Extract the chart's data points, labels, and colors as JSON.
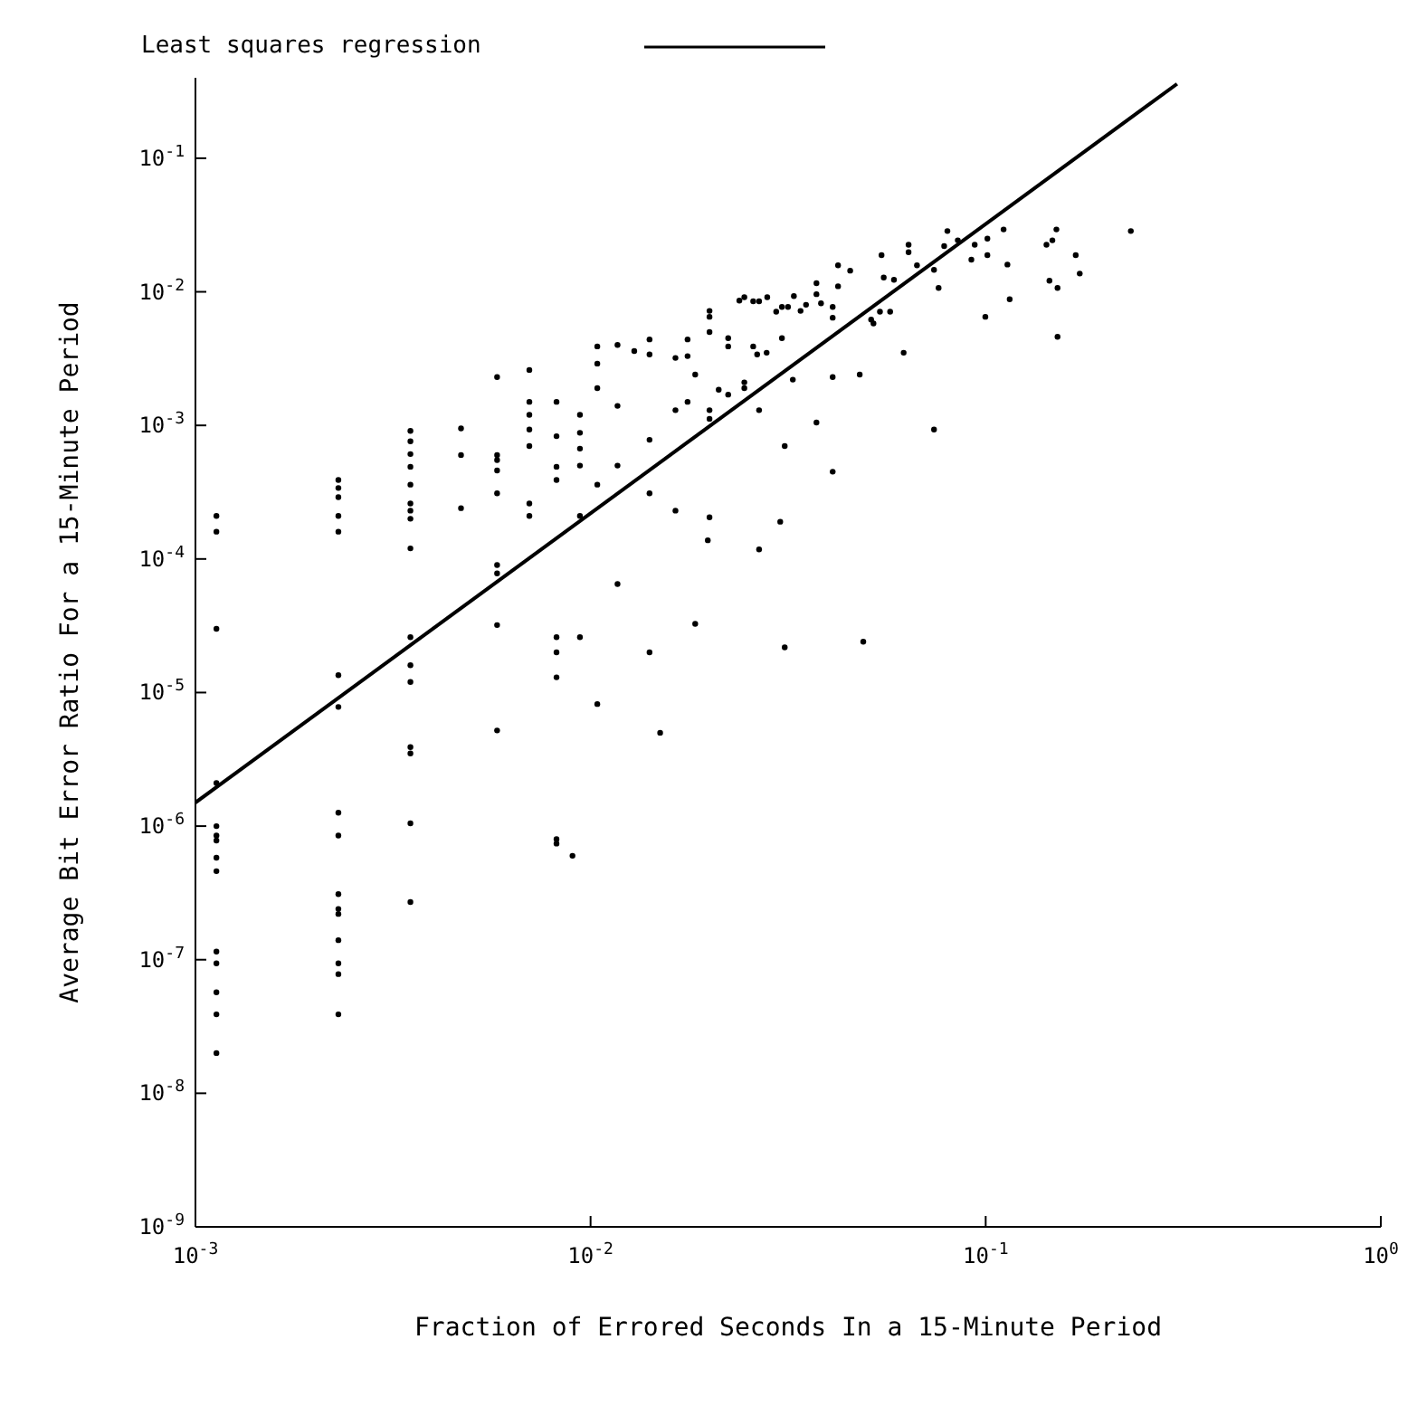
{
  "chart_data": {
    "type": "scatter",
    "xlabel": "Fraction of Errored Seconds In a 15-Minute Period",
    "ylabel": "Average Bit Error Ratio For a 15-Minute Period",
    "log": "xy",
    "grid": false,
    "legend": "top",
    "xlim": [
      0.001,
      1
    ],
    "ylim": [
      1e-09,
      0.4
    ],
    "xticks": [
      {
        "value": 0.001,
        "label": "10$^{-3}$"
      },
      {
        "value": 0.01,
        "label": "10$^{-2}$"
      },
      {
        "value": 0.1,
        "label": "10$^{-1}$"
      },
      {
        "value": 1,
        "label": "10$^{0}$"
      }
    ],
    "yticks": [
      {
        "value": 1e-09,
        "label": "10$^{-9}$"
      },
      {
        "value": 1e-08,
        "label": "10$^{-8}$"
      },
      {
        "value": 1e-07,
        "label": "10$^{-7}$"
      },
      {
        "value": 1e-06,
        "label": "10$^{-6}$"
      },
      {
        "value": 1e-05,
        "label": "10$^{-5}$"
      },
      {
        "value": 0.0001,
        "label": "10$^{-4}$"
      },
      {
        "value": 0.001,
        "label": "10$^{-3}$"
      },
      {
        "value": 0.01,
        "label": "10$^{-2}$"
      },
      {
        "value": 0.1,
        "label": "10$^{-1}$"
      }
    ],
    "series": [
      {
        "type": "scatter",
        "color": "#000000",
        "marker": "circle",
        "x": [
          0.00113,
          0.00113,
          0.00113,
          0.00113,
          0.00113,
          0.00113,
          0.00113,
          0.00113,
          0.00113,
          0.00113,
          0.00113,
          0.00113,
          0.00113,
          0.00113,
          0.0023,
          0.0023,
          0.0023,
          0.0023,
          0.0023,
          0.0023,
          0.0023,
          0.0023,
          0.0023,
          0.0023,
          0.0023,
          0.0023,
          0.0023,
          0.0023,
          0.0023,
          0.0023,
          0.0035,
          0.0035,
          0.0035,
          0.0035,
          0.0035,
          0.0035,
          0.0035,
          0.0035,
          0.0035,
          0.0035,
          0.0035,
          0.0035,
          0.0035,
          0.0035,
          0.0035,
          0.0035,
          0.0047,
          0.0047,
          0.0047,
          0.0058,
          0.0058,
          0.0058,
          0.0058,
          0.0058,
          0.0058,
          0.0058,
          0.0058,
          0.0058,
          0.007,
          0.007,
          0.007,
          0.007,
          0.007,
          0.007,
          0.007,
          0.0082,
          0.0082,
          0.0082,
          0.0082,
          0.0082,
          0.0082,
          0.0082,
          0.0082,
          0.0082,
          0.009,
          0.0094,
          0.0094,
          0.0094,
          0.0094,
          0.0094,
          0.0094,
          0.0104,
          0.0104,
          0.0104,
          0.0104,
          0.0104,
          0.0117,
          0.0117,
          0.0117,
          0.0117,
          0.0129,
          0.0141,
          0.0141,
          0.0141,
          0.0141,
          0.0141,
          0.015,
          0.0164,
          0.0164,
          0.0164,
          0.0176,
          0.0176,
          0.0176,
          0.02,
          0.02,
          0.02,
          0.0223,
          0.0223,
          0.0238,
          0.0245,
          0.0258,
          0.0267,
          0.028,
          0.0295,
          0.0305,
          0.0316,
          0.0327,
          0.034,
          0.0351,
          0.0373,
          0.0373,
          0.0383,
          0.041,
          0.041,
          0.0423,
          0.0423,
          0.0454,
          0.0545,
          0.0552,
          0.0586,
          0.0638,
          0.0638,
          0.067,
          0.074,
          0.076,
          0.0785,
          0.08,
          0.085,
          0.0938,
          0.092,
          0.101,
          0.101,
          0.111,
          0.1135,
          0.115,
          0.1425,
          0.1475,
          0.151,
          0.145,
          0.152,
          0.152,
          0.169,
          0.173,
          0.233,
          0.0998,
          0.062,
          0.0513,
          0.054,
          0.0573,
          0.052,
          0.048,
          0.041,
          0.0325,
          0.0305,
          0.0279,
          0.0264,
          0.0258,
          0.0245,
          0.0245,
          0.0211,
          0.0223,
          0.02,
          0.02,
          0.0267,
          0.0373,
          0.074,
          0.0184,
          0.031,
          0.041,
          0.02,
          0.0198,
          0.0302,
          0.0267,
          0.0184,
          0.031,
          0.049
        ],
        "values": [
          0.00021,
          0.00016,
          3e-05,
          2.1e-06,
          1e-06,
          8.5e-07,
          7.8e-07,
          5.8e-07,
          4.6e-07,
          1.15e-07,
          9.4e-08,
          5.7e-08,
          3.9e-08,
          2e-08,
          0.00039,
          0.00034,
          0.00029,
          0.00021,
          0.00016,
          1.35e-05,
          7.8e-06,
          1.26e-06,
          8.5e-07,
          3.1e-07,
          2.4e-07,
          2.2e-07,
          1.4e-07,
          9.4e-08,
          7.8e-08,
          3.9e-08,
          0.00091,
          0.00076,
          0.00061,
          0.00049,
          0.00036,
          0.00026,
          0.00023,
          0.0002,
          0.00012,
          2.6e-05,
          1.6e-05,
          1.2e-05,
          3.9e-06,
          3.5e-06,
          1.05e-06,
          2.7e-07,
          0.00095,
          0.0006,
          0.00024,
          0.0023,
          0.0006,
          0.00055,
          0.00046,
          0.00031,
          9e-05,
          7.8e-05,
          3.2e-05,
          5.2e-06,
          0.0026,
          0.0015,
          0.0012,
          0.00093,
          0.0007,
          0.00026,
          0.00021,
          0.0015,
          0.00083,
          0.00049,
          0.00039,
          2.6e-05,
          2e-05,
          1.3e-05,
          8e-07,
          7.4e-07,
          6e-07,
          0.0012,
          0.00088,
          0.00067,
          0.0005,
          0.00021,
          2.6e-05,
          0.0039,
          0.0029,
          0.0019,
          0.00036,
          8.2e-06,
          0.004,
          0.0014,
          0.0005,
          6.5e-05,
          0.0036,
          0.0044,
          0.0034,
          0.00078,
          0.00031,
          2e-05,
          5e-06,
          0.0032,
          0.0013,
          0.00023,
          0.0044,
          0.0033,
          0.0015,
          0.0072,
          0.0065,
          0.005,
          0.0045,
          0.0039,
          0.0086,
          0.0091,
          0.0085,
          0.0085,
          0.0091,
          0.0071,
          0.0077,
          0.0077,
          0.0093,
          0.0072,
          0.008,
          0.0116,
          0.0096,
          0.0082,
          0.0077,
          0.0064,
          0.0158,
          0.011,
          0.0144,
          0.0188,
          0.0128,
          0.0123,
          0.0225,
          0.0198,
          0.0158,
          0.0146,
          0.0107,
          0.022,
          0.0285,
          0.0243,
          0.0225,
          0.0174,
          0.025,
          0.0188,
          0.0293,
          0.016,
          0.0088,
          0.0225,
          0.0243,
          0.0293,
          0.0121,
          0.0107,
          0.0046,
          0.0188,
          0.0137,
          0.0285,
          0.0065,
          0.0035,
          0.0062,
          0.0071,
          0.0071,
          0.0058,
          0.0024,
          0.0023,
          0.0022,
          0.0045,
          0.0035,
          0.0034,
          0.0039,
          0.0021,
          0.0019,
          0.00185,
          0.0017,
          0.0013,
          0.00112,
          0.0013,
          0.00105,
          0.00093,
          0.0024,
          0.0007,
          0.00045,
          0.000205,
          0.000138,
          0.00019,
          0.000118,
          3.27e-05,
          2.18e-05,
          2.4e-05
        ]
      },
      {
        "type": "line",
        "name": "Least squares regression",
        "color": "#000000",
        "marker": "none",
        "line_style": "solid",
        "x": [
          0.001,
          0.305
        ],
        "values": [
          1.5e-06,
          0.36
        ]
      }
    ]
  }
}
